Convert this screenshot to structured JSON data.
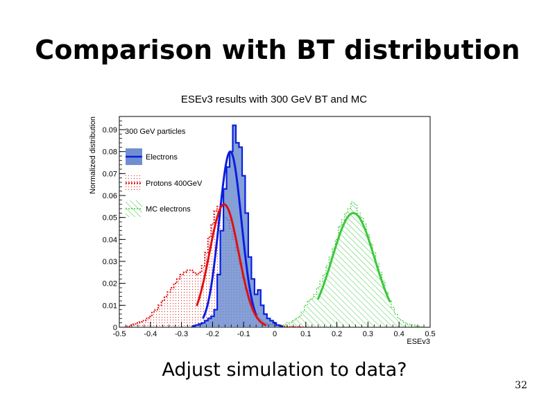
{
  "slide": {
    "title": "Comparison with BT distribution",
    "question": "Adjust simulation to data?",
    "page_number": "32"
  },
  "chart_data": {
    "type": "area",
    "title": "ESEv3 results with 300 GeV BT and MC",
    "xlabel": "ESEv3",
    "ylabel": "Normalized distribution",
    "xlim": [
      -0.5,
      0.5
    ],
    "ylim": [
      0,
      0.096
    ],
    "xticks": [
      -0.5,
      -0.4,
      -0.3,
      -0.2,
      -0.1,
      0,
      0.1,
      0.2,
      0.3,
      0.4,
      0.5
    ],
    "xtick_labels": [
      "-0.5",
      "-0.4",
      "-0.3",
      "-0.2",
      "-0.1",
      "0",
      "0.1",
      "0.2",
      "0.3",
      "0.4",
      "0.5"
    ],
    "yticks": [
      0,
      0.01,
      0.02,
      0.03,
      0.04,
      0.05,
      0.06,
      0.07,
      0.08,
      0.09
    ],
    "ytick_labels": [
      "0",
      "0.01",
      "0.02",
      "0.03",
      "0.04",
      "0.05",
      "0.06",
      "0.07",
      "0.08",
      "0.09"
    ],
    "legend": {
      "header": "300 GeV particles",
      "placement": "top-left"
    },
    "colors": {
      "electrons_fill": "#6f8fd0",
      "electrons_line": "#0a1ee0",
      "protons": "#e01010",
      "mc": "#3cc83c"
    },
    "bin_width": 0.01,
    "series": [
      {
        "name": "Electrons",
        "style": "filled-step",
        "x": [
          -0.26,
          -0.25,
          -0.24,
          -0.23,
          -0.22,
          -0.21,
          -0.2,
          -0.19,
          -0.18,
          -0.17,
          -0.16,
          -0.15,
          -0.14,
          -0.13,
          -0.12,
          -0.11,
          -0.1,
          -0.09,
          -0.08,
          -0.07,
          -0.06,
          -0.05,
          -0.04,
          -0.03,
          -0.02,
          -0.01,
          0.0,
          0.01,
          0.02
        ],
        "values": [
          0.0005,
          0.001,
          0.0015,
          0.002,
          0.003,
          0.004,
          0.005,
          0.008,
          0.024,
          0.044,
          0.063,
          0.073,
          0.08,
          0.092,
          0.084,
          0.082,
          0.069,
          0.052,
          0.032,
          0.022,
          0.015,
          0.017,
          0.01,
          0.006,
          0.004,
          0.003,
          0.002,
          0.001,
          0.0005
        ]
      },
      {
        "name": "Protons 400GeV",
        "style": "dotted-step",
        "x": [
          -0.47,
          -0.46,
          -0.45,
          -0.44,
          -0.43,
          -0.42,
          -0.41,
          -0.4,
          -0.39,
          -0.38,
          -0.37,
          -0.36,
          -0.35,
          -0.34,
          -0.33,
          -0.32,
          -0.31,
          -0.3,
          -0.29,
          -0.28,
          -0.27,
          -0.26,
          -0.25,
          -0.24,
          -0.23,
          -0.22,
          -0.21,
          -0.2,
          -0.19,
          -0.18,
          -0.17,
          -0.16,
          -0.15,
          -0.14,
          -0.13,
          -0.12,
          -0.11,
          -0.1,
          -0.09,
          -0.08,
          -0.07,
          -0.06,
          -0.05,
          -0.04,
          -0.03,
          -0.02,
          -0.01,
          0.0,
          0.01,
          0.02,
          0.03,
          0.04,
          0.05,
          0.06,
          0.07,
          0.08,
          0.09,
          0.1
        ],
        "values": [
          0.0005,
          0.001,
          0.0015,
          0.002,
          0.0025,
          0.003,
          0.004,
          0.005,
          0.007,
          0.008,
          0.01,
          0.012,
          0.014,
          0.016,
          0.018,
          0.02,
          0.022,
          0.024,
          0.025,
          0.026,
          0.026,
          0.025,
          0.024,
          0.025,
          0.028,
          0.034,
          0.041,
          0.047,
          0.053,
          0.055,
          0.056,
          0.05,
          0.049,
          0.045,
          0.04,
          0.035,
          0.029,
          0.022,
          0.017,
          0.012,
          0.008,
          0.006,
          0.004,
          0.003,
          0.002,
          0.0015,
          0.001,
          0.0008,
          0.0005,
          0.0004,
          0.0003,
          0.0003,
          0.0002,
          0.0002,
          0.0002,
          0.0001,
          0.0001,
          0.0001
        ]
      },
      {
        "name": "MC electrons",
        "style": "hatched-step",
        "x": [
          0.02,
          0.03,
          0.04,
          0.05,
          0.06,
          0.07,
          0.08,
          0.09,
          0.1,
          0.11,
          0.12,
          0.13,
          0.14,
          0.15,
          0.16,
          0.17,
          0.18,
          0.19,
          0.2,
          0.21,
          0.22,
          0.23,
          0.24,
          0.25,
          0.26,
          0.27,
          0.28,
          0.29,
          0.3,
          0.31,
          0.32,
          0.33,
          0.34,
          0.35,
          0.36,
          0.37,
          0.38,
          0.39,
          0.4,
          0.41,
          0.42,
          0.43,
          0.44,
          0.45,
          0.46,
          0.47
        ],
        "values": [
          0.001,
          0.001,
          0.002,
          0.002,
          0.003,
          0.004,
          0.005,
          0.007,
          0.01,
          0.012,
          0.013,
          0.015,
          0.018,
          0.021,
          0.024,
          0.028,
          0.032,
          0.036,
          0.04,
          0.046,
          0.049,
          0.052,
          0.054,
          0.057,
          0.056,
          0.052,
          0.05,
          0.047,
          0.042,
          0.038,
          0.034,
          0.029,
          0.025,
          0.021,
          0.016,
          0.012,
          0.009,
          0.006,
          0.004,
          0.003,
          0.002,
          0.0015,
          0.001,
          0.001,
          0.0005,
          0.0003
        ]
      }
    ],
    "fits": [
      {
        "series": "Electrons",
        "mean": -0.143,
        "sigma": 0.036,
        "amp": 0.08,
        "xmin": -0.23,
        "xmax": -0.06
      },
      {
        "series": "Protons 400GeV",
        "mean": -0.163,
        "sigma": 0.047,
        "amp": 0.056,
        "xmin": -0.25,
        "xmax": -0.03
      },
      {
        "series": "MC electrons",
        "mean": 0.253,
        "sigma": 0.068,
        "amp": 0.052,
        "xmin": 0.14,
        "xmax": 0.37
      }
    ]
  }
}
